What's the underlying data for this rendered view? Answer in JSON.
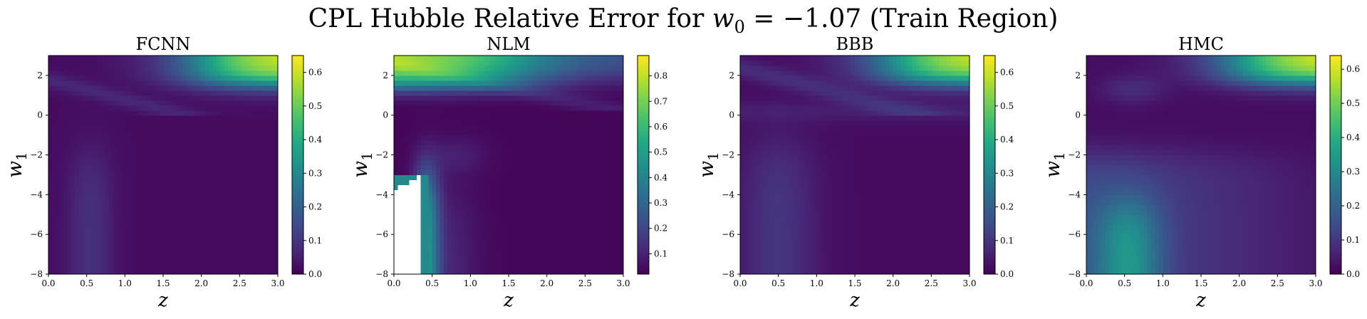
{
  "title": {
    "prefix": "CPL Hubble Relative Error for ",
    "w_symbol": "w",
    "w_subscript": "0",
    "equation": " = −1.07",
    "suffix": " (Train Region)"
  },
  "chart_data": [
    {
      "type": "heatmap",
      "title": "FCNN",
      "xlabel": "z",
      "ylabel_symbol": "w",
      "ylabel_subscript": "1",
      "xlim": [
        0.0,
        3.0
      ],
      "ylim": [
        -8,
        3
      ],
      "xticks": [
        "0.0",
        "0.5",
        "1.0",
        "1.5",
        "2.0",
        "2.5",
        "3.0"
      ],
      "yticks": [
        "−8",
        "−6",
        "−4",
        "−2",
        "0",
        "2"
      ],
      "colorbar_range": [
        0.0,
        0.65
      ],
      "colorbar_ticks": [
        "0.0",
        "0.1",
        "0.2",
        "0.3",
        "0.4",
        "0.5",
        "0.6"
      ],
      "colorbar_tick_values": [
        0.0,
        0.1,
        0.2,
        0.3,
        0.4,
        0.5,
        0.6
      ]
    },
    {
      "type": "heatmap",
      "title": "NLM",
      "xlabel": "z",
      "ylabel_symbol": "w",
      "ylabel_subscript": "1",
      "xlim": [
        0.0,
        3.0
      ],
      "ylim": [
        -8,
        3
      ],
      "xticks": [
        "0.0",
        "0.5",
        "1.0",
        "1.5",
        "2.0",
        "2.5",
        "3.0"
      ],
      "yticks": [
        "−8",
        "−6",
        "−4",
        "−2",
        "0",
        "2"
      ],
      "colorbar_range": [
        0.02,
        0.88
      ],
      "colorbar_ticks": [
        "0.1",
        "0.2",
        "0.3",
        "0.4",
        "0.5",
        "0.6",
        "0.7",
        "0.8"
      ],
      "colorbar_tick_values": [
        0.1,
        0.2,
        0.3,
        0.4,
        0.5,
        0.6,
        0.7,
        0.8
      ]
    },
    {
      "type": "heatmap",
      "title": "BBB",
      "xlabel": "z",
      "ylabel_symbol": "w",
      "ylabel_subscript": "1",
      "xlim": [
        0.0,
        3.0
      ],
      "ylim": [
        -8,
        3
      ],
      "xticks": [
        "0.0",
        "0.5",
        "1.0",
        "1.5",
        "2.0",
        "2.5",
        "3.0"
      ],
      "yticks": [
        "−8",
        "−6",
        "−4",
        "−2",
        "0",
        "2"
      ],
      "colorbar_range": [
        0.0,
        0.65
      ],
      "colorbar_ticks": [
        "0.0",
        "0.1",
        "0.2",
        "0.3",
        "0.4",
        "0.5",
        "0.6"
      ],
      "colorbar_tick_values": [
        0.0,
        0.1,
        0.2,
        0.3,
        0.4,
        0.5,
        0.6
      ]
    },
    {
      "type": "heatmap",
      "title": "HMC",
      "xlabel": "z",
      "ylabel_symbol": "w",
      "ylabel_subscript": "1",
      "xlim": [
        0.0,
        3.0
      ],
      "ylim": [
        -8,
        3
      ],
      "xticks": [
        "0.0",
        "0.5",
        "1.0",
        "1.5",
        "2.0",
        "2.5",
        "3.0"
      ],
      "yticks": [
        "−8",
        "−6",
        "−4",
        "−2",
        "0",
        "2"
      ],
      "colorbar_range": [
        0.0,
        0.64
      ],
      "colorbar_ticks": [
        "0.0",
        "0.1",
        "0.2",
        "0.3",
        "0.4",
        "0.5",
        "0.6"
      ],
      "colorbar_tick_values": [
        0.0,
        0.1,
        0.2,
        0.3,
        0.4,
        0.5,
        0.6
      ]
    }
  ]
}
